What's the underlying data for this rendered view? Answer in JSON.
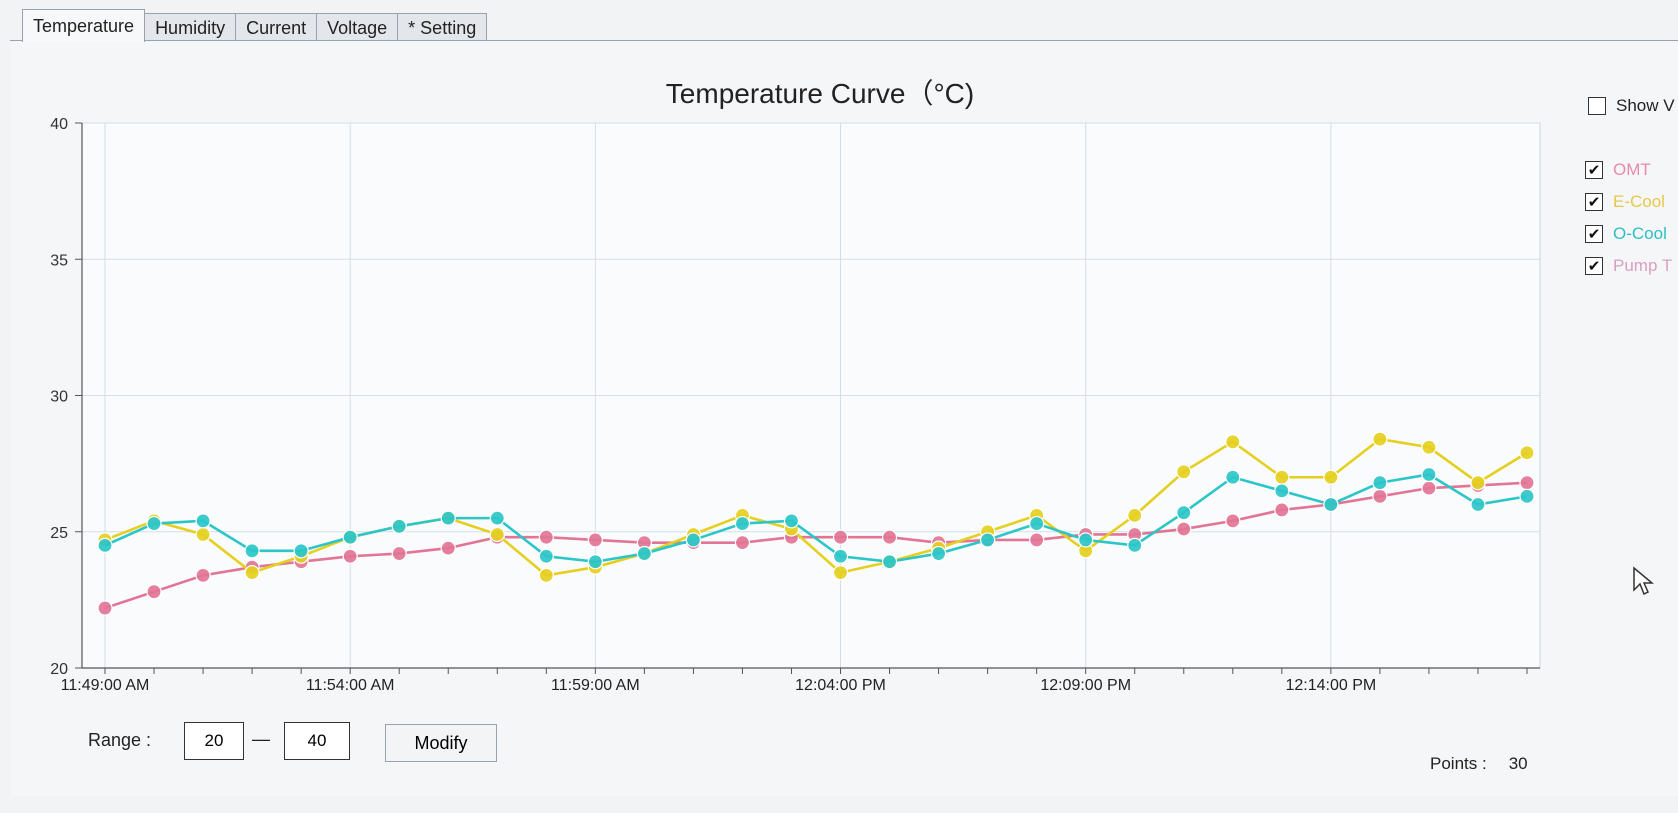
{
  "tabs": [
    {
      "label": "Temperature",
      "active": true
    },
    {
      "label": "Humidity",
      "active": false
    },
    {
      "label": "Current",
      "active": false
    },
    {
      "label": "Voltage",
      "active": false
    },
    {
      "label": "* Setting",
      "active": false
    }
  ],
  "show_checkbox": {
    "label": "Show V",
    "checked": false
  },
  "legend": [
    {
      "label": "OMT",
      "checked": true,
      "color": "#e98aa8"
    },
    {
      "label": "E-Cool",
      "checked": true,
      "color": "#e6c84a"
    },
    {
      "label": "O-Cool",
      "checked": true,
      "color": "#2bbfc4"
    },
    {
      "label": "Pump T",
      "checked": true,
      "color": "#d9a0c0"
    }
  ],
  "range": {
    "label": "Range :",
    "min": "20",
    "max": "40",
    "dash": "—"
  },
  "modify_label": "Modify",
  "points": {
    "label": "Points :",
    "value": "30"
  },
  "chart_data": {
    "type": "line",
    "title": "Temperature Curve（°C)",
    "xlabel": "",
    "ylabel": "",
    "ylim": [
      20,
      40
    ],
    "yticks": [
      20,
      25,
      30,
      35,
      40
    ],
    "xtick_labels": [
      "11:49:00 AM",
      "11:54:00 AM",
      "11:59:00 AM",
      "12:04:00 PM",
      "12:09:00 PM",
      "12:14:00 PM"
    ],
    "grid": true,
    "series": [
      {
        "name": "",
        "color": "#e5cf1f",
        "values": [
          24.7,
          25.4,
          24.9,
          23.5,
          24.1,
          24.8,
          25.2,
          25.5,
          24.9,
          23.4,
          23.7,
          24.2,
          24.9,
          25.6,
          25.1,
          23.5,
          23.9,
          24.4,
          25.0,
          25.6,
          24.3,
          25.6,
          27.2,
          28.3,
          27.0,
          27.0,
          28.4,
          28.1,
          26.8,
          27.9
        ]
      },
      {
        "name": "",
        "color": "#2cc5c8",
        "values": [
          24.5,
          25.3,
          25.4,
          24.3,
          24.3,
          24.8,
          25.2,
          25.5,
          25.5,
          24.1,
          23.9,
          24.2,
          24.7,
          25.3,
          25.4,
          24.1,
          23.9,
          24.2,
          24.7,
          25.3,
          24.7,
          24.5,
          25.7,
          27.0,
          26.5,
          26.0,
          26.8,
          27.1,
          26.0,
          26.3
        ]
      },
      {
        "name": "",
        "color": "#e27596",
        "values": [
          22.2,
          22.8,
          23.4,
          23.7,
          23.9,
          24.1,
          24.2,
          24.4,
          24.8,
          24.8,
          24.7,
          24.6,
          24.6,
          24.6,
          24.8,
          24.8,
          24.8,
          24.6,
          24.7,
          24.7,
          24.9,
          24.9,
          25.1,
          25.4,
          25.8,
          26.0,
          26.3,
          26.6,
          26.7,
          26.8
        ]
      }
    ]
  }
}
